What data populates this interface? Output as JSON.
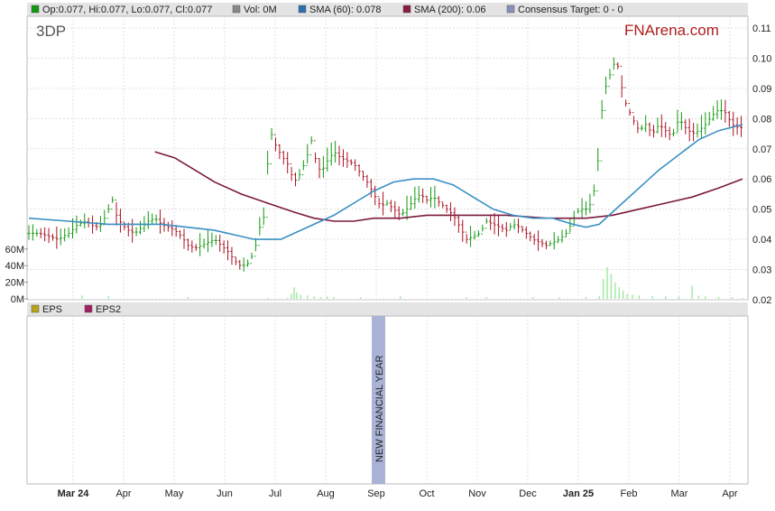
{
  "legend": {
    "ohlc": "Op:0.077, Hi:0.077, Lo:0.077, Cl:0.077",
    "vol": "Vol: 0M",
    "sma60": "SMA (60): 0.078",
    "sma200": "SMA (200): 0.06",
    "consensus": "Consensus Target: 0 - 0"
  },
  "lower_legend": {
    "eps": "EPS",
    "eps2": "EPS2"
  },
  "ticker": "3DP",
  "brand": "FNArena.com",
  "annotation": "NEW FINANCIAL YEAR",
  "colors": {
    "price_up": "#119911",
    "price_down": "#aa1122",
    "sma60": "#3a8fc4",
    "sma200": "#7a1a3a",
    "volume": "#9ee89e",
    "annotation_band": "#aab3d6",
    "brand": "#b01d1d",
    "grid": "#d9d9d9",
    "legend_bar": "#e4e4e4"
  },
  "chart_data": {
    "type": "line",
    "title": "3DP",
    "x_labels": [
      {
        "label": "Mar 24",
        "bold": true
      },
      {
        "label": "Apr",
        "bold": false
      },
      {
        "label": "May",
        "bold": false
      },
      {
        "label": "Jun",
        "bold": false
      },
      {
        "label": "Jul",
        "bold": false
      },
      {
        "label": "Aug",
        "bold": false
      },
      {
        "label": "Sep",
        "bold": false
      },
      {
        "label": "Oct",
        "bold": false
      },
      {
        "label": "Nov",
        "bold": false
      },
      {
        "label": "Dec",
        "bold": false
      },
      {
        "label": "Jan 25",
        "bold": true
      },
      {
        "label": "Feb",
        "bold": false
      },
      {
        "label": "Mar",
        "bold": false
      },
      {
        "label": "Apr",
        "bold": false
      }
    ],
    "price_axis": {
      "min": 0.02,
      "max": 0.11,
      "ticks": [
        "0.02",
        "0.03",
        "0.04",
        "0.05",
        "0.06",
        "0.07",
        "0.08",
        "0.09",
        "0.10",
        "0.11"
      ]
    },
    "volume_axis": {
      "ticks": [
        "0M",
        "20M",
        "40M",
        "60M"
      ]
    },
    "price_points": [
      [
        0,
        0.042
      ],
      [
        8,
        0.042
      ],
      [
        15,
        0.041
      ],
      [
        22,
        0.04
      ],
      [
        30,
        0.042
      ],
      [
        37,
        0.045
      ],
      [
        43,
        0.046
      ],
      [
        50,
        0.044
      ],
      [
        55,
        0.045
      ],
      [
        60,
        0.05
      ],
      [
        63,
        0.053
      ],
      [
        66,
        0.048
      ],
      [
        70,
        0.045
      ],
      [
        75,
        0.043
      ],
      [
        80,
        0.042
      ],
      [
        85,
        0.044
      ],
      [
        90,
        0.046
      ],
      [
        95,
        0.047
      ],
      [
        100,
        0.045
      ],
      [
        105,
        0.044
      ],
      [
        110,
        0.043
      ],
      [
        115,
        0.041
      ],
      [
        120,
        0.038
      ],
      [
        125,
        0.037
      ],
      [
        130,
        0.038
      ],
      [
        135,
        0.039
      ],
      [
        140,
        0.04
      ],
      [
        145,
        0.038
      ],
      [
        150,
        0.036
      ],
      [
        155,
        0.033
      ],
      [
        160,
        0.031
      ],
      [
        165,
        0.032
      ],
      [
        170,
        0.036
      ],
      [
        172,
        0.04
      ],
      [
        175,
        0.046
      ],
      [
        178,
        0.048
      ],
      [
        180,
        0.065
      ],
      [
        182,
        0.076
      ],
      [
        185,
        0.072
      ],
      [
        190,
        0.068
      ],
      [
        195,
        0.065
      ],
      [
        200,
        0.059
      ],
      [
        205,
        0.062
      ],
      [
        210,
        0.068
      ],
      [
        212,
        0.075
      ],
      [
        215,
        0.068
      ],
      [
        220,
        0.062
      ],
      [
        225,
        0.066
      ],
      [
        230,
        0.069
      ],
      [
        235,
        0.067
      ],
      [
        240,
        0.066
      ],
      [
        245,
        0.065
      ],
      [
        250,
        0.062
      ],
      [
        255,
        0.059
      ],
      [
        260,
        0.055
      ],
      [
        265,
        0.051
      ],
      [
        270,
        0.052
      ],
      [
        275,
        0.05
      ],
      [
        280,
        0.048
      ],
      [
        285,
        0.05
      ],
      [
        290,
        0.053
      ],
      [
        295,
        0.055
      ],
      [
        300,
        0.053
      ],
      [
        305,
        0.054
      ],
      [
        310,
        0.052
      ],
      [
        315,
        0.05
      ],
      [
        320,
        0.048
      ],
      [
        325,
        0.044
      ],
      [
        330,
        0.04
      ],
      [
        335,
        0.041
      ],
      [
        340,
        0.042
      ],
      [
        345,
        0.046
      ],
      [
        350,
        0.045
      ],
      [
        355,
        0.044
      ],
      [
        360,
        0.043
      ],
      [
        365,
        0.045
      ],
      [
        370,
        0.044
      ],
      [
        375,
        0.042
      ],
      [
        380,
        0.04
      ],
      [
        385,
        0.039
      ],
      [
        390,
        0.038
      ],
      [
        395,
        0.039
      ],
      [
        400,
        0.04
      ],
      [
        405,
        0.042
      ],
      [
        410,
        0.046
      ],
      [
        413,
        0.049
      ],
      [
        416,
        0.05
      ],
      [
        420,
        0.05
      ],
      [
        424,
        0.052
      ],
      [
        428,
        0.06
      ],
      [
        430,
        0.072
      ],
      [
        433,
        0.088
      ],
      [
        436,
        0.092
      ],
      [
        440,
        0.097
      ],
      [
        443,
        0.1
      ],
      [
        446,
        0.092
      ],
      [
        450,
        0.085
      ],
      [
        455,
        0.08
      ],
      [
        460,
        0.076
      ],
      [
        465,
        0.078
      ],
      [
        470,
        0.075
      ],
      [
        475,
        0.078
      ],
      [
        480,
        0.076
      ],
      [
        485,
        0.074
      ],
      [
        490,
        0.08
      ],
      [
        495,
        0.077
      ],
      [
        500,
        0.075
      ],
      [
        505,
        0.076
      ],
      [
        510,
        0.078
      ],
      [
        515,
        0.081
      ],
      [
        520,
        0.083
      ],
      [
        525,
        0.082
      ],
      [
        530,
        0.078
      ],
      [
        535,
        0.077
      ],
      [
        538,
        0.077
      ]
    ],
    "sma60_points": [
      [
        0,
        0.047
      ],
      [
        30,
        0.046
      ],
      [
        60,
        0.045
      ],
      [
        100,
        0.045
      ],
      [
        140,
        0.043
      ],
      [
        170,
        0.04
      ],
      [
        190,
        0.04
      ],
      [
        200,
        0.042
      ],
      [
        215,
        0.045
      ],
      [
        230,
        0.048
      ],
      [
        245,
        0.052
      ],
      [
        260,
        0.056
      ],
      [
        275,
        0.059
      ],
      [
        290,
        0.06
      ],
      [
        305,
        0.06
      ],
      [
        320,
        0.058
      ],
      [
        335,
        0.054
      ],
      [
        350,
        0.05
      ],
      [
        365,
        0.048
      ],
      [
        380,
        0.047
      ],
      [
        395,
        0.047
      ],
      [
        410,
        0.045
      ],
      [
        420,
        0.044
      ],
      [
        430,
        0.045
      ],
      [
        440,
        0.049
      ],
      [
        450,
        0.053
      ],
      [
        460,
        0.057
      ],
      [
        475,
        0.063
      ],
      [
        490,
        0.068
      ],
      [
        505,
        0.073
      ],
      [
        520,
        0.076
      ],
      [
        538,
        0.078
      ]
    ],
    "sma200_points": [
      [
        95,
        0.069
      ],
      [
        110,
        0.067
      ],
      [
        125,
        0.063
      ],
      [
        140,
        0.059
      ],
      [
        160,
        0.055
      ],
      [
        180,
        0.052
      ],
      [
        200,
        0.049
      ],
      [
        215,
        0.047
      ],
      [
        230,
        0.046
      ],
      [
        245,
        0.046
      ],
      [
        260,
        0.047
      ],
      [
        280,
        0.047
      ],
      [
        300,
        0.048
      ],
      [
        330,
        0.048
      ],
      [
        360,
        0.048
      ],
      [
        390,
        0.047
      ],
      [
        420,
        0.047
      ],
      [
        440,
        0.048
      ],
      [
        460,
        0.05
      ],
      [
        480,
        0.052
      ],
      [
        500,
        0.054
      ],
      [
        520,
        0.057
      ],
      [
        538,
        0.06
      ]
    ],
    "volume_points": [
      [
        40,
        4
      ],
      [
        60,
        3
      ],
      [
        120,
        2
      ],
      [
        180,
        1
      ],
      [
        195,
        1
      ],
      [
        198,
        6
      ],
      [
        200,
        14
      ],
      [
        202,
        8
      ],
      [
        205,
        5
      ],
      [
        210,
        4
      ],
      [
        215,
        3
      ],
      [
        220,
        2
      ],
      [
        225,
        3
      ],
      [
        230,
        2
      ],
      [
        250,
        2
      ],
      [
        280,
        3
      ],
      [
        330,
        2
      ],
      [
        345,
        2
      ],
      [
        380,
        2
      ],
      [
        400,
        2
      ],
      [
        420,
        2
      ],
      [
        430,
        3
      ],
      [
        433,
        24
      ],
      [
        436,
        38
      ],
      [
        439,
        30
      ],
      [
        442,
        20
      ],
      [
        445,
        14
      ],
      [
        448,
        10
      ],
      [
        451,
        6
      ],
      [
        455,
        5
      ],
      [
        460,
        4
      ],
      [
        470,
        3
      ],
      [
        480,
        3
      ],
      [
        490,
        3
      ],
      [
        500,
        16
      ],
      [
        505,
        4
      ],
      [
        510,
        3
      ],
      [
        520,
        2
      ],
      [
        530,
        2
      ],
      [
        538,
        1
      ]
    ],
    "annotation_x": 255
  }
}
